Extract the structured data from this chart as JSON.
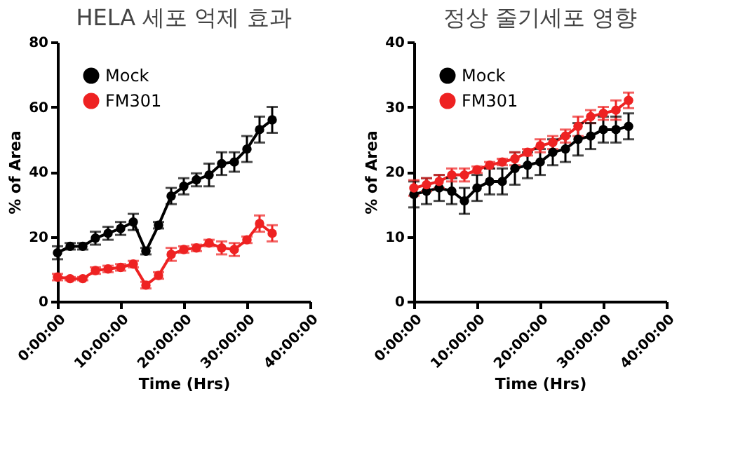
{
  "chart_data": [
    {
      "type": "line",
      "title": "HELA 세포 억제 효과",
      "xlabel": "Time (Hrs)",
      "ylabel": "% of Area",
      "x": [
        0,
        2,
        4,
        6,
        8,
        10,
        12,
        14,
        16,
        18,
        20,
        22,
        24,
        26,
        28,
        30,
        32,
        34
      ],
      "series": [
        {
          "name": "Mock",
          "color": "#000000",
          "values": [
            15,
            17,
            17,
            19.5,
            21,
            22.5,
            24.5,
            15.5,
            23.5,
            32.5,
            35.5,
            37.5,
            39,
            42.5,
            43,
            47,
            53,
            56
          ],
          "errors": [
            2,
            1,
            1,
            2,
            2,
            2,
            2.5,
            1,
            1,
            2.5,
            2.5,
            2,
            3.5,
            3.5,
            3,
            4,
            4,
            4
          ]
        },
        {
          "name": "FM301",
          "color": "#ee2222",
          "values": [
            7.5,
            7,
            7,
            9.5,
            10,
            10.5,
            11.5,
            5,
            8,
            14.5,
            16,
            16.5,
            18,
            16.5,
            16,
            19,
            24,
            21
          ],
          "errors": [
            1,
            0.5,
            0.5,
            1,
            1,
            1,
            1,
            1,
            1,
            2,
            1,
            1,
            1,
            2,
            2,
            1,
            2.5,
            2.5
          ]
        }
      ],
      "xlim": [
        0,
        40
      ],
      "xticks": [
        {
          "value": 0,
          "label": "0:00:00"
        },
        {
          "value": 10,
          "label": "10:00:00"
        },
        {
          "value": 20,
          "label": "20:00:00"
        },
        {
          "value": 30,
          "label": "30:00:00"
        },
        {
          "value": 40,
          "label": "40:00:00"
        }
      ],
      "ylim": [
        0,
        80
      ],
      "yticks": [
        0,
        20,
        40,
        60,
        80
      ],
      "grid": false,
      "legend": "top left",
      "marker": "circle",
      "line_style": "solid"
    },
    {
      "type": "line",
      "title": "정상 줄기세포 영향",
      "xlabel": "Time (Hrs)",
      "ylabel": "% of Area",
      "x": [
        0,
        2,
        4,
        6,
        8,
        10,
        12,
        14,
        16,
        18,
        20,
        22,
        24,
        26,
        28,
        30,
        32,
        34
      ],
      "series": [
        {
          "name": "Mock",
          "color": "#000000",
          "values": [
            16.5,
            17,
            17.5,
            17,
            15.5,
            17.5,
            18.5,
            18.5,
            20.5,
            21,
            21.5,
            23,
            23.5,
            25,
            25.5,
            26.5,
            26.5,
            27
          ],
          "errors": [
            2,
            2,
            2,
            2,
            2,
            2,
            2,
            2,
            2.5,
            2,
            2,
            2,
            2,
            2.5,
            2,
            2,
            2,
            2
          ]
        },
        {
          "name": "FM301",
          "color": "#ee2222",
          "values": [
            17.5,
            18,
            18.5,
            19.5,
            19.5,
            20.3,
            21,
            21.5,
            22,
            23,
            24,
            24.5,
            25.5,
            27,
            28.5,
            29,
            29.5,
            31
          ],
          "errors": [
            1.2,
            1,
            1,
            1,
            1,
            0.5,
            0.5,
            0.5,
            1,
            0.5,
            1,
            1,
            1,
            1.5,
            1,
            1,
            1.5,
            1.2
          ]
        }
      ],
      "xlim": [
        0,
        40
      ],
      "xticks": [
        {
          "value": 0,
          "label": "0:00:00"
        },
        {
          "value": 10,
          "label": "10:00:00"
        },
        {
          "value": 20,
          "label": "20:00:00"
        },
        {
          "value": 30,
          "label": "30:00:00"
        },
        {
          "value": 40,
          "label": "40:00:00"
        }
      ],
      "ylim": [
        0,
        40
      ],
      "yticks": [
        0,
        10,
        20,
        30,
        40
      ],
      "grid": false,
      "legend": "top left",
      "marker": "circle",
      "line_style": "solid"
    }
  ]
}
